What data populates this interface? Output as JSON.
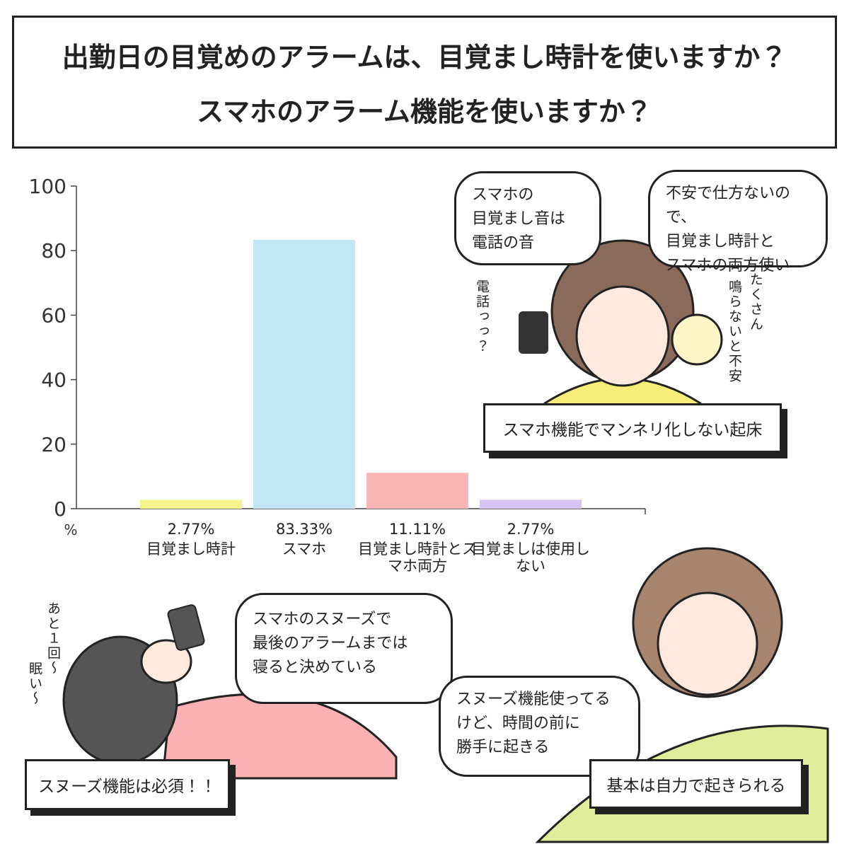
{
  "header": {
    "title_lines": [
      "出勤日の目覚めのアラームは、目覚まし時計を使いますか？",
      "スマホのアラーム機能を使いますか？"
    ]
  },
  "chart_data": {
    "type": "bar",
    "categories": [
      "目覚まし時計",
      "スマホ",
      "目覚まし時計とスマホ両方",
      "目覚ましは使用しない"
    ],
    "values": [
      2.77,
      83.33,
      11.11,
      2.77
    ],
    "value_labels": [
      "2.77%",
      "83.33%",
      "11.11%",
      "2.77%"
    ],
    "colors": [
      "#f6f28c",
      "#c3e6f4",
      "#f9b5b5",
      "#d6c6f3"
    ],
    "y_unit": "%",
    "ylim": [
      0,
      100
    ],
    "yticks": [
      0,
      20,
      40,
      60,
      80,
      100
    ],
    "grid": false
  },
  "scenes": {
    "top_right": {
      "bubbles": [
        [
          "スマホの",
          "目覚まし音は",
          "電話の音"
        ],
        [
          "不安で仕方ないので、",
          "目覚まし時計と",
          "スマホの両方使い"
        ]
      ],
      "sfx": [
        "電話っっ？",
        "たくさん",
        "鳴らないと不安"
      ],
      "caption": "スマホ機能でマンネリ化しない起床"
    },
    "bottom_left": {
      "bubble": [
        "スマホのスヌーズで",
        "最後のアラームまでは",
        "寝ると決めている"
      ],
      "sfx": [
        "あと１回〜",
        "眠い〜"
      ],
      "caption": "スヌーズ機能は必須！！"
    },
    "bottom_right": {
      "bubble": [
        "スヌーズ機能使ってる",
        "けど、時間の前に",
        "勝手に起きる"
      ],
      "caption": "基本は自力で起きられる"
    }
  }
}
